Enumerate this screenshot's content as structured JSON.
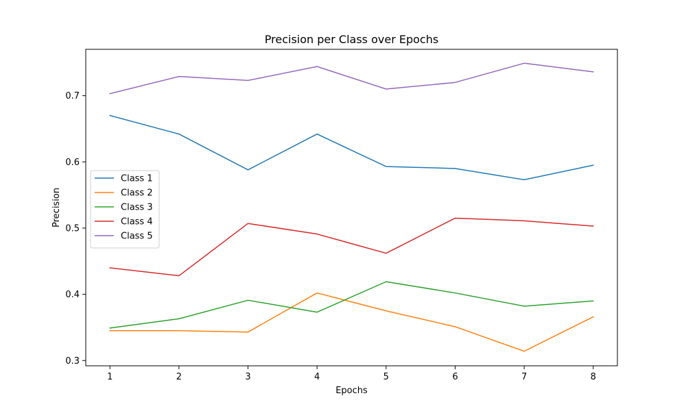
{
  "chart_data": {
    "type": "line",
    "title": "Precision per Class over Epochs",
    "xlabel": "Epochs",
    "ylabel": "Precision",
    "x": [
      1,
      2,
      3,
      4,
      5,
      6,
      7,
      8
    ],
    "xlim": [
      0.65,
      8.35
    ],
    "ylim": [
      0.292,
      0.77
    ],
    "yticks": [
      0.3,
      0.4,
      0.5,
      0.6,
      0.7
    ],
    "ytick_labels": [
      "0.3",
      "0.4",
      "0.5",
      "0.6",
      "0.7"
    ],
    "xtick_labels": [
      "1",
      "2",
      "3",
      "4",
      "5",
      "6",
      "7",
      "8"
    ],
    "grid": false,
    "legend_position": "center-left",
    "series": [
      {
        "name": "Class 1",
        "color": "#1f77b4",
        "values": [
          0.67,
          0.642,
          0.588,
          0.642,
          0.593,
          0.59,
          0.573,
          0.595
        ]
      },
      {
        "name": "Class 2",
        "color": "#ff7f0e",
        "values": [
          0.345,
          0.345,
          0.343,
          0.402,
          0.375,
          0.351,
          0.314,
          0.366
        ]
      },
      {
        "name": "Class 3",
        "color": "#2ca02c",
        "values": [
          0.349,
          0.363,
          0.391,
          0.373,
          0.419,
          0.402,
          0.382,
          0.39
        ]
      },
      {
        "name": "Class 4",
        "color": "#d62728",
        "values": [
          0.44,
          0.428,
          0.507,
          0.491,
          0.462,
          0.515,
          0.511,
          0.503
        ]
      },
      {
        "name": "Class 5",
        "color": "#9467bd",
        "values": [
          0.703,
          0.729,
          0.723,
          0.744,
          0.71,
          0.72,
          0.749,
          0.736
        ]
      }
    ]
  }
}
